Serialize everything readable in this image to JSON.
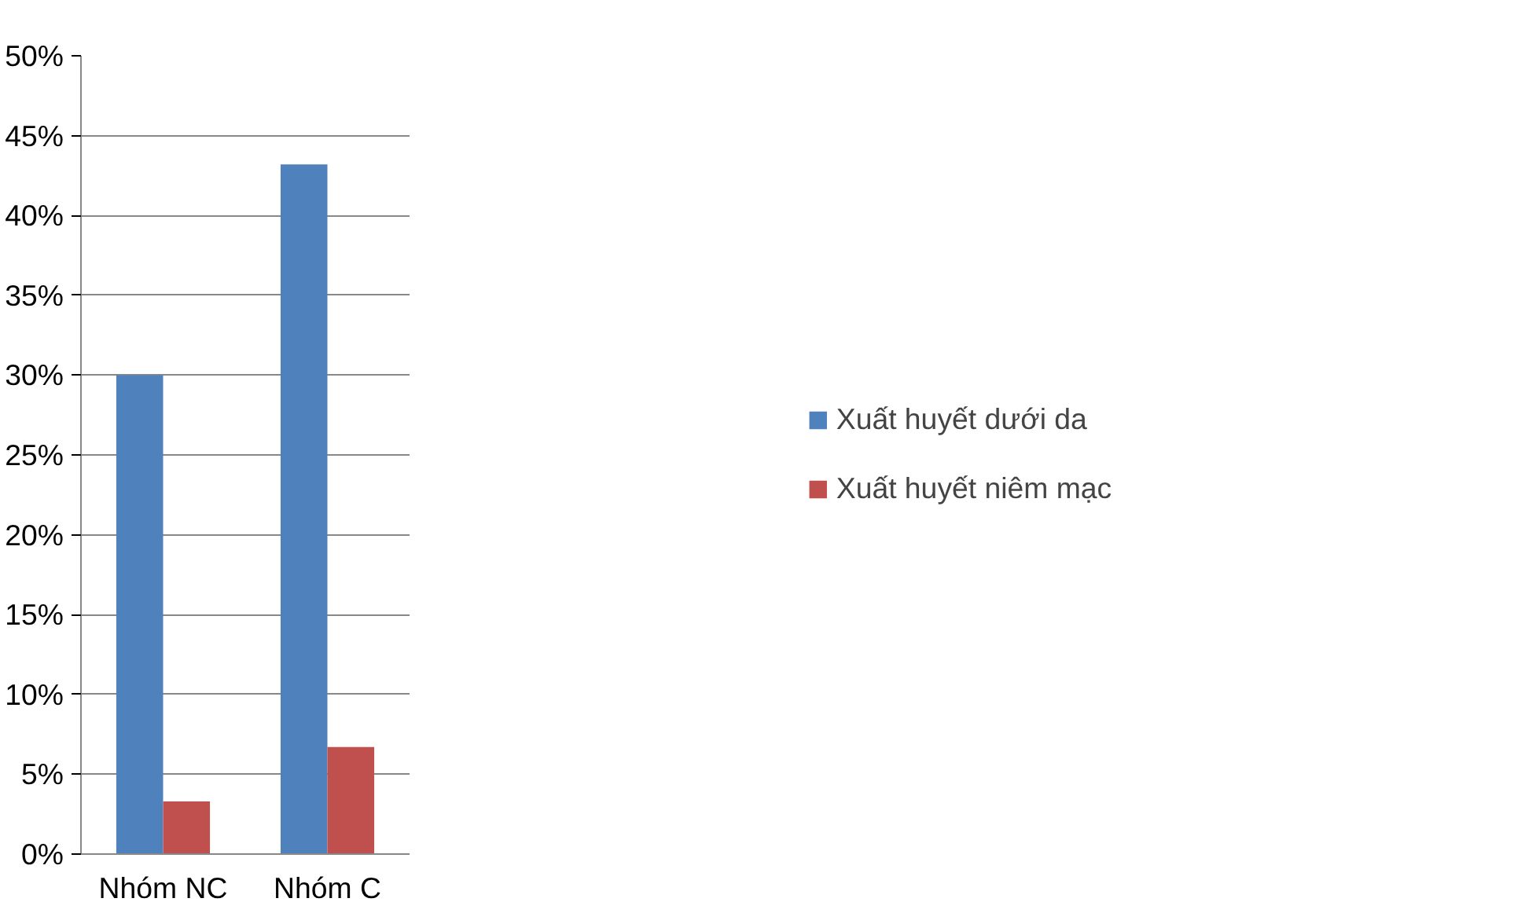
{
  "chart_data": {
    "type": "bar",
    "categories": [
      "Nhóm NC",
      "Nhóm C"
    ],
    "series": [
      {
        "name": "Xuất huyết dưới da",
        "color": "#4f81bd",
        "values": [
          30,
          43.2
        ]
      },
      {
        "name": "Xuất huyết niêm mạc",
        "color": "#c0504d",
        "values": [
          3.3,
          6.7
        ]
      }
    ],
    "ylim": [
      0,
      50
    ],
    "yticks": [
      {
        "value": 0,
        "label": "0%"
      },
      {
        "value": 5,
        "label": "5%"
      },
      {
        "value": 10,
        "label": "10%"
      },
      {
        "value": 15,
        "label": "15%"
      },
      {
        "value": 20,
        "label": "20%"
      },
      {
        "value": 25,
        "label": "25%"
      },
      {
        "value": 30,
        "label": "30%"
      },
      {
        "value": 35,
        "label": "35%"
      },
      {
        "value": 40,
        "label": "40%"
      },
      {
        "value": 45,
        "label": "45%"
      },
      {
        "value": 50,
        "label": "50%"
      }
    ],
    "grid": "y",
    "legend": "right"
  }
}
